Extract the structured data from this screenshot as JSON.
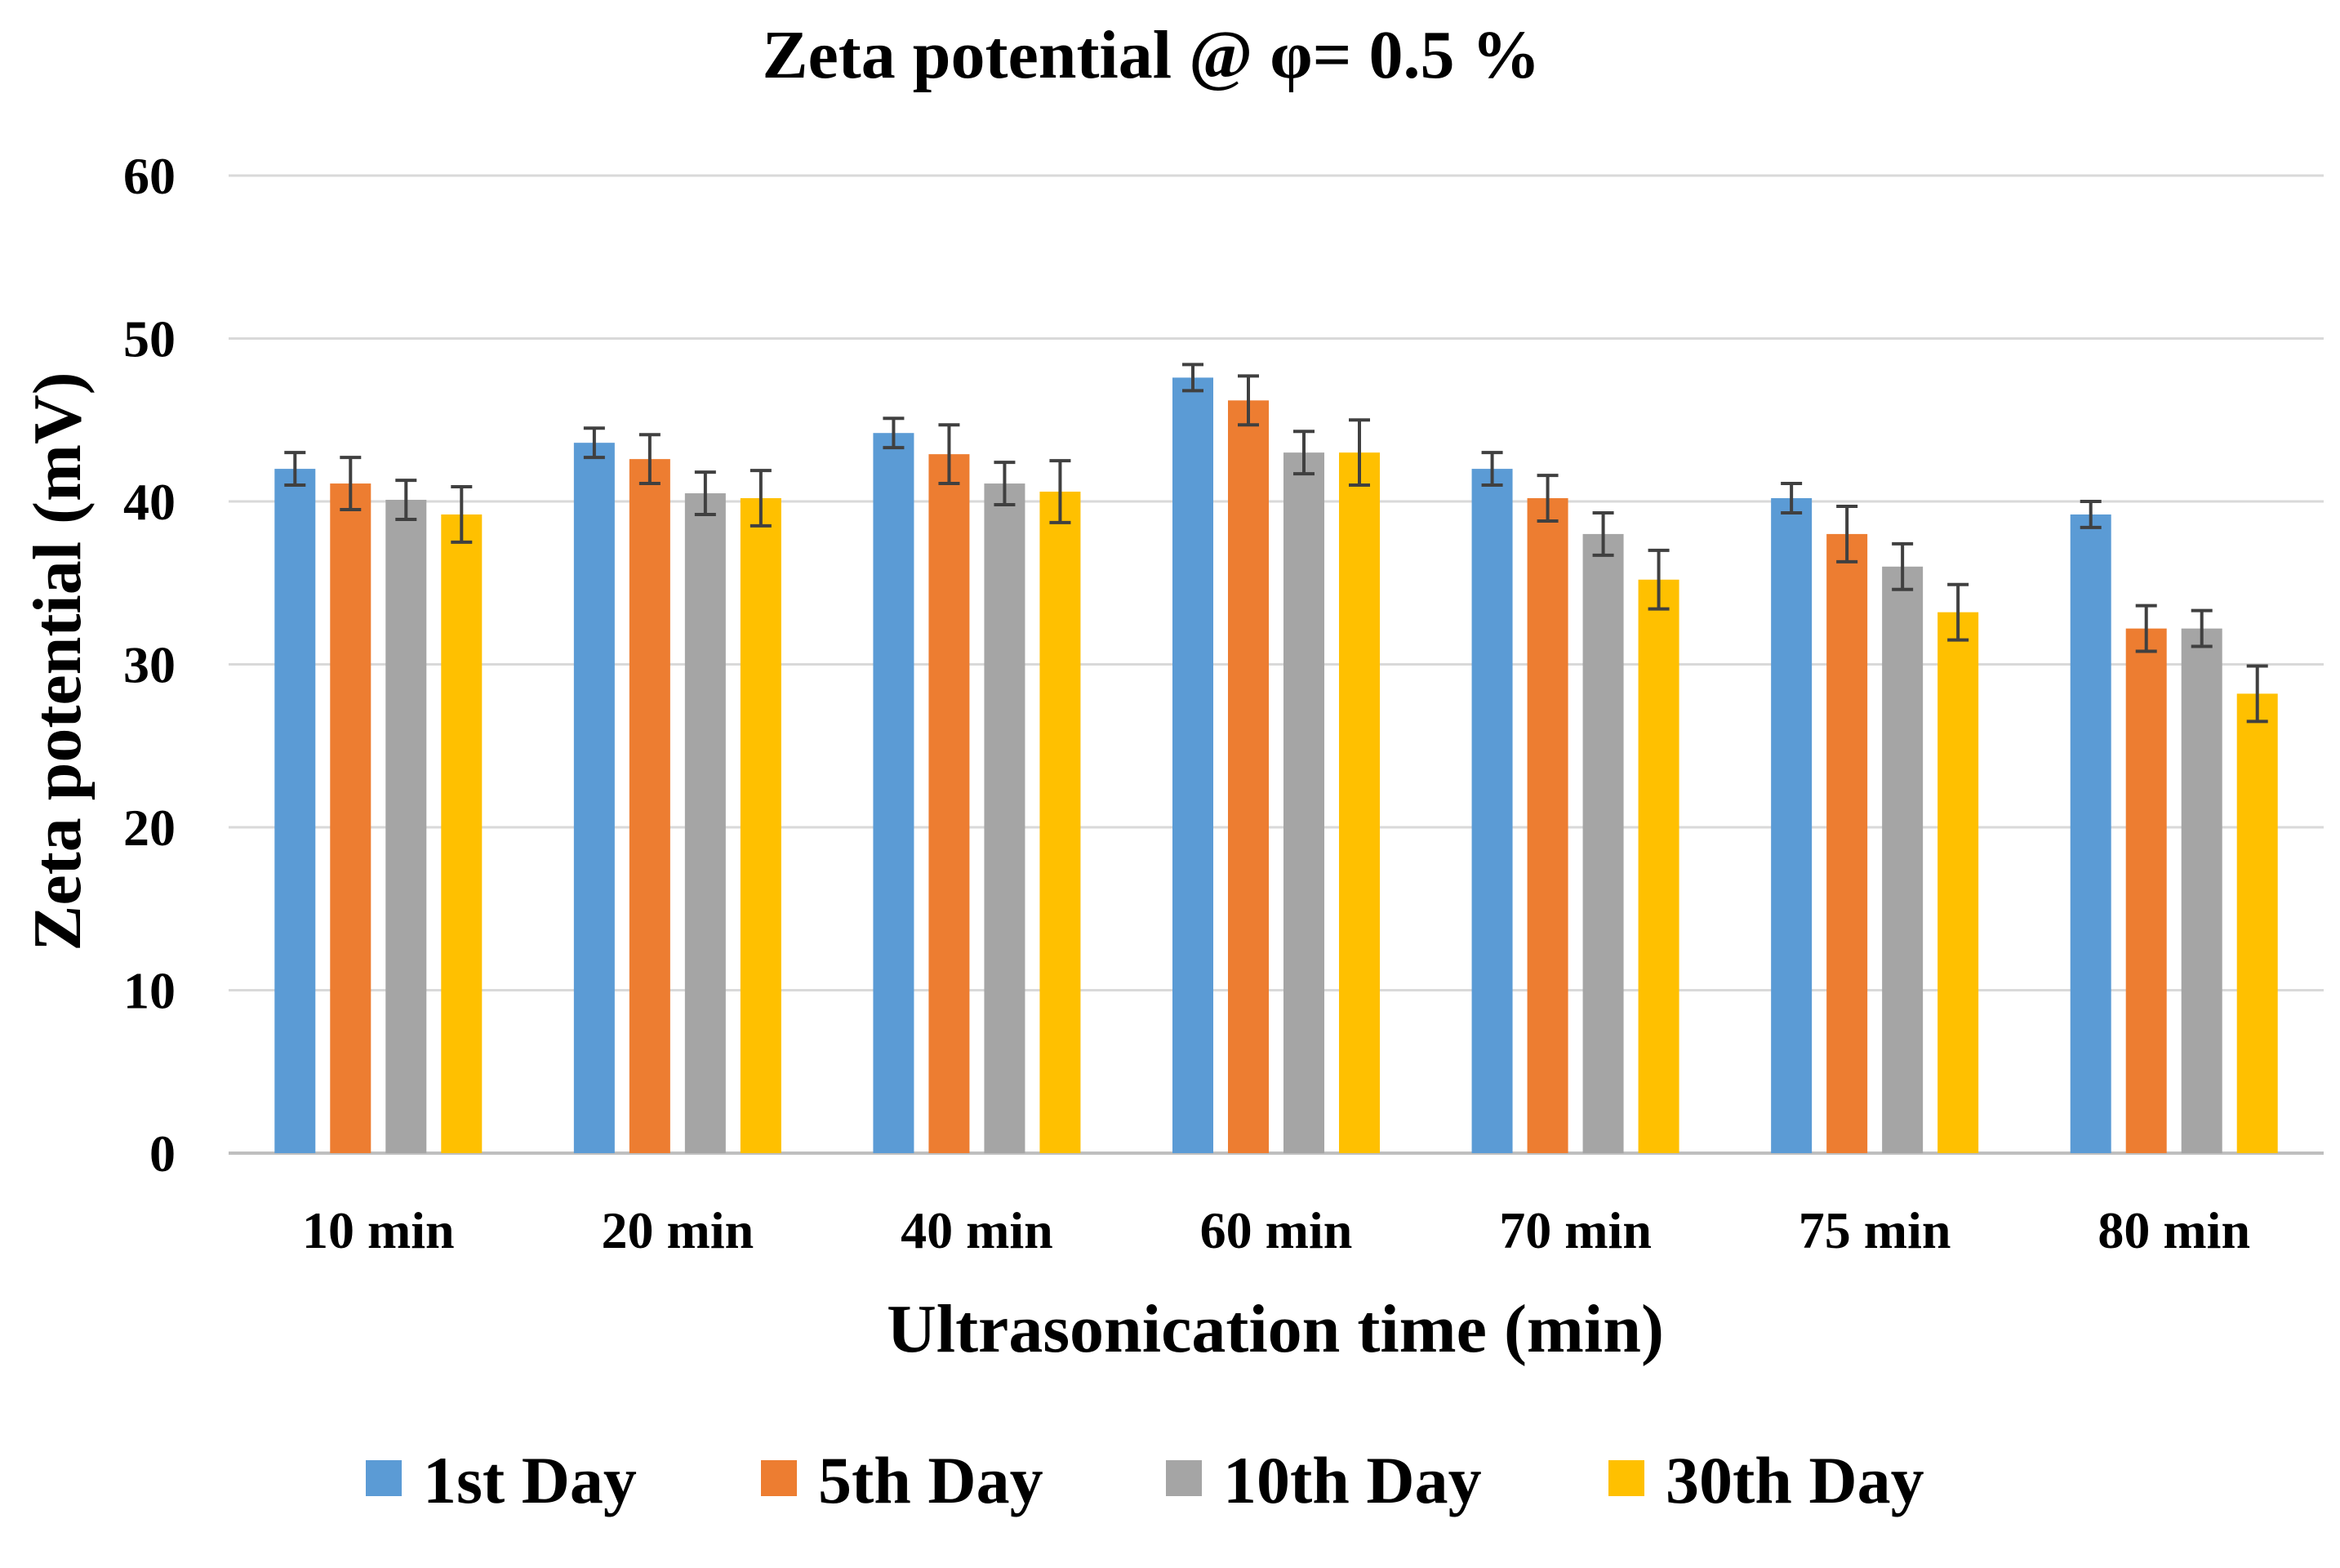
{
  "chart_data": {
    "type": "bar",
    "title": "Zeta potential @ φ=  0.5 %",
    "xlabel": "Ultrasonication time (min)",
    "ylabel": "Zeta potential (mV)",
    "ylim": [
      0,
      60
    ],
    "yticks": [
      0,
      10,
      20,
      30,
      40,
      50,
      60
    ],
    "grid": true,
    "legend_position": "bottom",
    "categories": [
      "10 min",
      "20 min",
      "40 min",
      "60 min",
      "70 min",
      "75 min",
      "80 min"
    ],
    "series": [
      {
        "name": "1st Day",
        "color": "#5b9bd5",
        "values": [
          42,
          43.6,
          44.2,
          47.6,
          42,
          40.2,
          39.2
        ],
        "errors": [
          1.0,
          0.9,
          0.9,
          0.8,
          1.0,
          0.9,
          0.8
        ]
      },
      {
        "name": "5th Day",
        "color": "#ed7d31",
        "values": [
          41.1,
          42.6,
          42.9,
          46.2,
          40.2,
          38,
          32.2
        ],
        "errors": [
          1.6,
          1.5,
          1.8,
          1.5,
          1.4,
          1.7,
          1.4
        ]
      },
      {
        "name": "10th Day",
        "color": "#a5a5a5",
        "values": [
          40.1,
          40.5,
          41.1,
          43,
          38,
          36,
          32.2
        ],
        "errors": [
          1.2,
          1.3,
          1.3,
          1.3,
          1.3,
          1.4,
          1.1
        ]
      },
      {
        "name": "30th Day",
        "color": "#ffc000",
        "values": [
          39.2,
          40.2,
          40.6,
          43,
          35.2,
          33.2,
          28.2
        ],
        "errors": [
          1.7,
          1.7,
          1.9,
          2.0,
          1.8,
          1.7,
          1.7
        ]
      }
    ]
  }
}
